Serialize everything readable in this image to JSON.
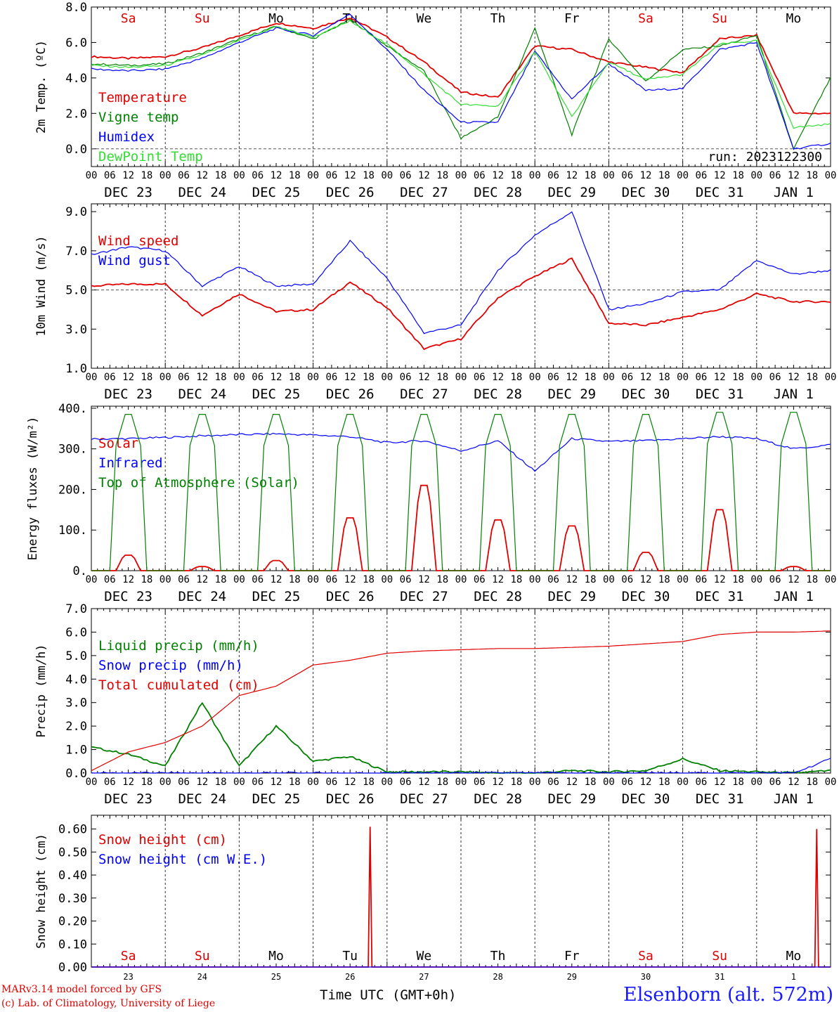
{
  "chart_data": [
    {
      "type": "line",
      "ylabel": "2m Temp. (ºC)",
      "ylim": [
        -1,
        8
      ],
      "yticks": [
        "0.0",
        "2.0",
        "4.0",
        "6.0",
        "8.0"
      ],
      "ytick_values": [
        0,
        2,
        4,
        6,
        8
      ],
      "hline": 0,
      "legend_position": "left",
      "annotation": "run: 2023122300",
      "day_labels": [
        "Sa",
        "Su",
        "Mo",
        "Tu",
        "We",
        "Th",
        "Fr",
        "Sa",
        "Su",
        "Mo"
      ],
      "day_label_colors": [
        "#e00000",
        "#e00000",
        "#000000",
        "#000000",
        "#000000",
        "#000000",
        "#000000",
        "#e00000",
        "#e00000",
        "#000000"
      ],
      "x_hours": [
        0,
        12,
        24,
        36,
        48,
        60,
        72,
        84,
        96,
        108,
        120,
        132,
        144,
        156,
        168,
        180,
        192,
        204,
        216,
        228,
        240
      ],
      "series": [
        {
          "name": "Temperature",
          "color": "#e00000",
          "values": [
            5.2,
            5.1,
            5.2,
            5.7,
            6.4,
            7.1,
            6.8,
            7.4,
            6.3,
            4.9,
            3.2,
            2.9,
            5.8,
            5.6,
            4.9,
            4.6,
            4.3,
            6.2,
            6.4,
            2.0,
            2.0
          ]
        },
        {
          "name": "Vigne temp",
          "color": "#008000",
          "values": [
            4.8,
            4.7,
            4.8,
            5.4,
            6.2,
            6.9,
            6.2,
            7.3,
            5.8,
            4.4,
            0.6,
            1.8,
            6.8,
            0.8,
            6.2,
            3.8,
            5.6,
            5.8,
            6.4,
            0.0,
            4.0
          ]
        },
        {
          "name": "Humidex",
          "color": "#0000ff",
          "values": [
            4.5,
            4.4,
            4.5,
            5.1,
            6.0,
            6.8,
            6.4,
            7.6,
            5.6,
            3.3,
            1.5,
            1.5,
            5.5,
            2.8,
            4.8,
            3.3,
            3.4,
            5.6,
            6.0,
            0.0,
            0.3
          ]
        },
        {
          "name": "DewPoint Temp",
          "color": "#33dd33",
          "values": [
            4.7,
            4.6,
            4.7,
            5.3,
            6.1,
            6.9,
            6.3,
            7.2,
            5.9,
            4.2,
            2.5,
            2.4,
            5.5,
            1.8,
            4.9,
            3.9,
            4.2,
            5.9,
            6.1,
            1.2,
            1.4
          ]
        }
      ]
    },
    {
      "type": "line",
      "ylabel": "10m Wind (m/s)",
      "ylim": [
        1,
        9.4
      ],
      "yticks": [
        "1.0",
        "3.0",
        "5.0",
        "7.0",
        "9.0"
      ],
      "ytick_values": [
        1,
        3,
        5,
        7,
        9
      ],
      "hline": 5,
      "legend_position": "top-left",
      "x_hours": [
        0,
        12,
        24,
        36,
        48,
        60,
        72,
        84,
        96,
        108,
        120,
        132,
        144,
        156,
        168,
        180,
        192,
        204,
        216,
        228,
        240
      ],
      "series": [
        {
          "name": "Wind speed",
          "color": "#e00000",
          "values": [
            5.2,
            5.3,
            5.3,
            3.7,
            4.8,
            3.9,
            4.0,
            5.4,
            4.1,
            2.0,
            2.5,
            4.6,
            5.7,
            6.6,
            3.3,
            3.2,
            3.6,
            4.0,
            4.8,
            4.4,
            4.4
          ]
        },
        {
          "name": "Wind gust",
          "color": "#0000ff",
          "values": [
            6.8,
            7.2,
            7.0,
            5.2,
            6.2,
            5.2,
            5.3,
            7.5,
            5.6,
            2.8,
            3.2,
            6.0,
            7.8,
            9.0,
            4.0,
            4.3,
            4.9,
            5.0,
            6.5,
            5.8,
            6.0
          ]
        }
      ]
    },
    {
      "type": "line",
      "ylabel": "Energy fluxes (W/m²)",
      "ylim": [
        0,
        405
      ],
      "yticks": [
        "0.",
        "100.",
        "200.",
        "300.",
        "400."
      ],
      "ytick_values": [
        0,
        100,
        200,
        300,
        400
      ],
      "legend_position": "top-left",
      "x_hours": [
        0,
        12,
        24,
        36,
        48,
        60,
        72,
        84,
        96,
        108,
        120,
        132,
        144,
        156,
        168,
        180,
        192,
        204,
        216,
        228,
        240
      ],
      "series": [
        {
          "name": "Solar",
          "color": "#e00000",
          "daily_peaks": [
            38,
            10,
            25,
            130,
            210,
            125,
            110,
            45,
            150,
            10
          ]
        },
        {
          "name": "Infrared",
          "color": "#0000ff",
          "values": [
            324,
            325,
            328,
            332,
            335,
            337,
            334,
            330,
            315,
            320,
            295,
            320,
            245,
            325,
            318,
            320,
            325,
            330,
            325,
            300,
            310
          ]
        },
        {
          "name": "Top of Atmosphere (Solar)",
          "color": "#008000",
          "daily_peaks": [
            385,
            385,
            385,
            385,
            385,
            385,
            385,
            385,
            390,
            390
          ]
        }
      ]
    },
    {
      "type": "line",
      "ylabel": "Precip (mm/h)",
      "ylim": [
        0,
        7
      ],
      "yticks": [
        "0.0",
        "1.0",
        "2.0",
        "3.0",
        "4.0",
        "5.0",
        "6.0",
        "7.0"
      ],
      "ytick_values": [
        0,
        1,
        2,
        3,
        4,
        5,
        6,
        7
      ],
      "legend_position": "top-left",
      "x_hours": [
        0,
        12,
        24,
        36,
        48,
        60,
        72,
        84,
        96,
        108,
        120,
        132,
        144,
        156,
        168,
        180,
        192,
        204,
        216,
        228,
        240
      ],
      "series": [
        {
          "name": "Liquid precip (mm/h)",
          "color": "#008000",
          "values": [
            1.1,
            0.8,
            0.3,
            3.0,
            0.3,
            2.0,
            0.5,
            0.7,
            0.05,
            0.05,
            0.05,
            0.0,
            0.0,
            0.1,
            0.05,
            0.1,
            0.6,
            0.1,
            0.05,
            0.0,
            0.1
          ]
        },
        {
          "name": "Snow precip (mm/h)",
          "color": "#0000ff",
          "values": [
            0,
            0,
            0,
            0,
            0,
            0,
            0,
            0,
            0,
            0,
            0,
            0,
            0,
            0,
            0,
            0,
            0,
            0,
            0,
            0,
            0.6
          ]
        },
        {
          "name": "Total cumulated (cm)",
          "color": "#e00000",
          "values": [
            0.1,
            0.9,
            1.3,
            2.0,
            3.3,
            3.7,
            4.6,
            4.8,
            5.1,
            5.2,
            5.25,
            5.3,
            5.3,
            5.35,
            5.4,
            5.5,
            5.6,
            5.9,
            6.0,
            6.0,
            6.05
          ]
        }
      ]
    },
    {
      "type": "line",
      "ylabel": "Snow height (cm)",
      "ylim": [
        0,
        0.66
      ],
      "yticks": [
        "0.00",
        "0.10",
        "0.20",
        "0.30",
        "0.40",
        "0.50",
        "0.60"
      ],
      "ytick_values": [
        0,
        0.1,
        0.2,
        0.3,
        0.4,
        0.5,
        0.6
      ],
      "legend_position": "top-left",
      "day_labels": [
        "Sa",
        "Su",
        "Mo",
        "Tu",
        "We",
        "Th",
        "Fr",
        "Sa",
        "Su",
        "Mo"
      ],
      "day_numbers": [
        "23",
        "24",
        "25",
        "26",
        "27",
        "28",
        "29",
        "30",
        "31",
        "1"
      ],
      "series": [
        {
          "name": "Snow height (cm)",
          "color": "#e00000",
          "spikes": [
            {
              "hour": 90.5,
              "value": 0.61
            },
            {
              "hour": 235.5,
              "value": 0.6
            }
          ]
        },
        {
          "name": "Snow height (cm W.E.)",
          "color": "#0000ff",
          "spikes": []
        }
      ]
    }
  ],
  "time_axis": {
    "hour_ticks": [
      "00",
      "06",
      "12",
      "18"
    ],
    "end_tick": "00",
    "date_labels": [
      "DEC 23",
      "DEC 24",
      "DEC 25",
      "DEC 26",
      "DEC 27",
      "DEC 28",
      "DEC 29",
      "DEC 30",
      "DEC 31",
      "JAN  1"
    ]
  },
  "footer": {
    "credit_line1": "MARv3.14 model forced by GFS",
    "credit_line2": "(c) Lab. of Climatology, University of Liege",
    "axis_title": "Time UTC (GMT+0h)",
    "station": "Elsenborn (alt. 572m)"
  }
}
